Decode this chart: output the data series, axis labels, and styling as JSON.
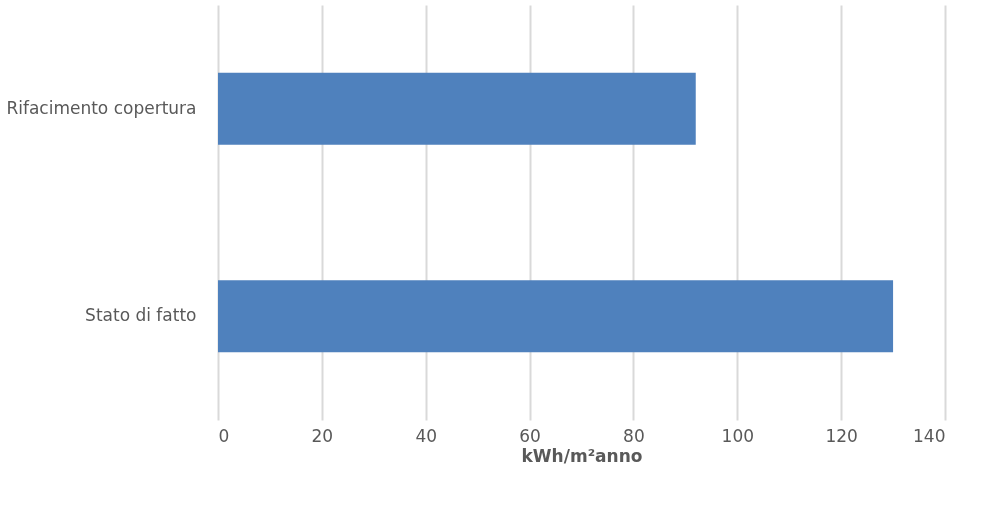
{
  "chart_data": {
    "type": "bar",
    "orientation": "horizontal",
    "categories": [
      "Rifacimento copertura",
      "Stato di fatto"
    ],
    "values": [
      92,
      130
    ],
    "color": "#4f81bd",
    "xlabel": "kWh/m²anno",
    "xlim": [
      0,
      140
    ],
    "xticks": [
      0,
      20,
      40,
      60,
      80,
      100,
      120,
      140
    ],
    "grid": "x"
  }
}
